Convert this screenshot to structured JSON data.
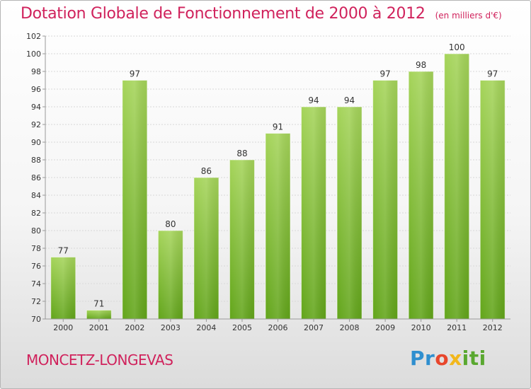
{
  "header": {
    "title": "Dotation Globale de Fonctionnement de 2000 à 2012",
    "subtitle": "(en milliers d'€)"
  },
  "footer": {
    "town": "MONCETZ-LONGEVAS",
    "logo": {
      "letters": [
        "P",
        "r",
        "o",
        "x",
        "i",
        "t",
        "i"
      ],
      "colors": [
        "#2f8fcf",
        "#2f8fcf",
        "#e8462c",
        "#f2b71b",
        "#5aa830",
        "#5aa830",
        "#5aa830"
      ]
    }
  },
  "colors": {
    "bar_light": "#a5d45a",
    "bar_dark": "#62a51a",
    "grid": "#d8d8d8",
    "axis": "#999999",
    "text": "#333333"
  },
  "chart_data": {
    "type": "bar",
    "categories": [
      "2000",
      "2001",
      "2002",
      "2003",
      "2004",
      "2005",
      "2006",
      "2007",
      "2008",
      "2009",
      "2010",
      "2011",
      "2012"
    ],
    "values": [
      77,
      71,
      97,
      80,
      86,
      88,
      91,
      94,
      94,
      97,
      98,
      100,
      97
    ],
    "title": "Dotation Globale de Fonctionnement de 2000 à 2012",
    "subtitle": "(en milliers d'€)",
    "ylim": [
      70,
      102
    ],
    "yticks": [
      70,
      72,
      74,
      76,
      78,
      80,
      82,
      84,
      86,
      88,
      90,
      92,
      94,
      96,
      98,
      100,
      102
    ],
    "grid": true,
    "legend": "none"
  }
}
